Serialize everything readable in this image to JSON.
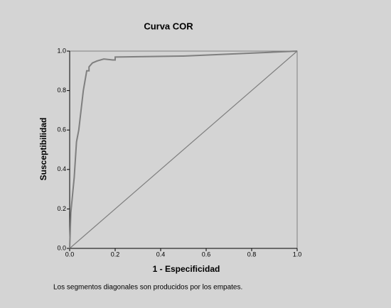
{
  "chart_data": {
    "type": "line",
    "title": "Curva COR",
    "xlabel": "1 - Especificidad",
    "ylabel": "Susceptibilidad",
    "note": "Los segmentos diagonales son producidos por los empates.",
    "xlim": [
      0,
      1
    ],
    "ylim": [
      0,
      1
    ],
    "xticks": [
      {
        "value": 0,
        "label": "0.0"
      },
      0.2,
      0.4,
      0.6,
      0.8,
      {
        "value": 1,
        "label": "1.0"
      }
    ],
    "yticks": [
      {
        "value": 0,
        "label": "0.0"
      },
      0.2,
      0.4,
      0.6,
      0.8,
      {
        "value": 1,
        "label": "1.0"
      }
    ],
    "series": [
      {
        "color": "#7f7f7f",
        "x": [
          0,
          0.005,
          0.02,
          0.03,
          0.04,
          0.06,
          0.075,
          0.085,
          0.085,
          0.1,
          0.12,
          0.15,
          0.19,
          0.2,
          0.2,
          0.5,
          1
        ],
        "values": [
          0,
          0.18,
          0.36,
          0.54,
          0.6,
          0.8,
          0.9,
          0.9,
          0.92,
          0.94,
          0.95,
          0.96,
          0.955,
          0.955,
          0.97,
          0.975,
          1
        ]
      },
      {
        "color": "#7f7f7f",
        "x": [
          0,
          1
        ],
        "values": [
          0,
          1
        ]
      }
    ]
  }
}
